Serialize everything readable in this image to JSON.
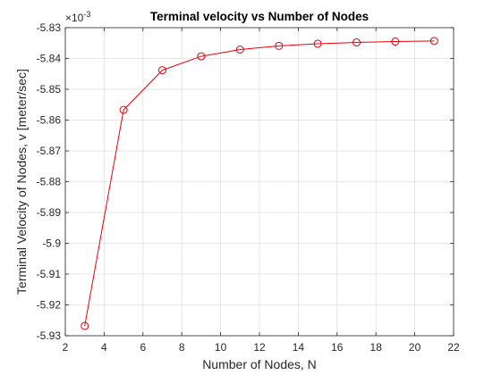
{
  "chart_data": {
    "type": "line",
    "title": "Terminal velocity vs Number of Nodes",
    "xlabel": "Number of Nodes, N",
    "ylabel": "Terminal Velocity of Nodes, v [meter/sec]",
    "exponent_label": "×10",
    "exponent_power": "-3",
    "xlim": [
      2,
      22
    ],
    "ylim": [
      -5.93,
      -5.83
    ],
    "x_ticks": [
      2,
      4,
      6,
      8,
      10,
      12,
      14,
      16,
      18,
      20,
      22
    ],
    "y_ticks": [
      -5.93,
      -5.92,
      -5.91,
      -5.9,
      -5.89,
      -5.88,
      -5.87,
      -5.86,
      -5.85,
      -5.84,
      -5.83
    ],
    "x_tick_labels": [
      "2",
      "4",
      "6",
      "8",
      "10",
      "12",
      "14",
      "16",
      "18",
      "20",
      "22"
    ],
    "y_tick_labels": [
      "-5.93",
      "-5.92",
      "-5.91",
      "-5.9",
      "-5.89",
      "-5.88",
      "-5.87",
      "-5.86",
      "-5.85",
      "-5.84",
      "-5.83"
    ],
    "grid": true,
    "series": [
      {
        "color": "#e8000b",
        "marker": "circle",
        "x": [
          3,
          5,
          7,
          9,
          11,
          13,
          15,
          17,
          19,
          21
        ],
        "y": [
          -5.9268,
          -5.8567,
          -5.8438,
          -5.8393,
          -5.8371,
          -5.8359,
          -5.8352,
          -5.8348,
          -5.8345,
          -5.8343
        ]
      }
    ]
  }
}
